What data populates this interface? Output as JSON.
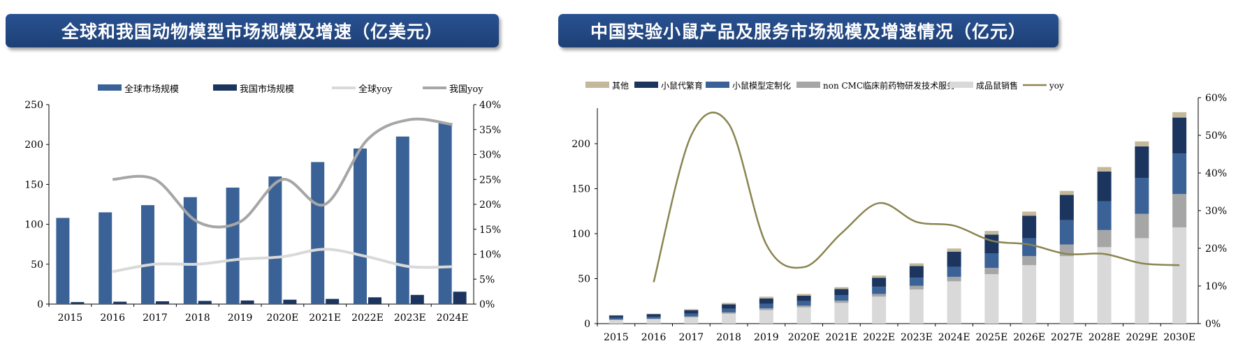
{
  "left": {
    "title": "全球和我国动物模型市场规模及增速（亿美元）",
    "chart_data": {
      "type": "bar",
      "categories": [
        "2015",
        "2016",
        "2017",
        "2018",
        "2019",
        "2020E",
        "2021E",
        "2022E",
        "2023E",
        "2024E"
      ],
      "series": [
        {
          "name": "全球市场规模",
          "kind": "bar",
          "axis": "left",
          "color": "#3a6296",
          "values": [
            108,
            115,
            124,
            134,
            146,
            160,
            178,
            195,
            210,
            227
          ]
        },
        {
          "name": "我国市场规模",
          "kind": "bar",
          "axis": "left",
          "color": "#1b355e",
          "values": [
            2.5,
            3,
            3.5,
            4,
            4.5,
            5.5,
            6.5,
            8.5,
            11.5,
            15.5
          ]
        },
        {
          "name": "全球yoy",
          "kind": "line",
          "axis": "right",
          "color": "#d9d9d9",
          "values": [
            null,
            6.5,
            8,
            8,
            9,
            9.5,
            11,
            9.5,
            7.5,
            7.5
          ]
        },
        {
          "name": "我国yoy",
          "kind": "line",
          "axis": "right",
          "color": "#a6a6a6",
          "values": [
            null,
            25,
            25,
            16.5,
            16.5,
            25,
            20,
            33,
            37,
            36
          ]
        }
      ],
      "y_left": {
        "min": 0,
        "max": 250,
        "ticks": [
          "0",
          "50",
          "100",
          "150",
          "200",
          "250"
        ]
      },
      "y_right": {
        "min": 0,
        "max": 40,
        "ticks": [
          "0%",
          "5%",
          "10%",
          "15%",
          "20%",
          "25%",
          "30%",
          "35%",
          "40%"
        ]
      },
      "legend": "top"
    }
  },
  "right": {
    "title": "中国实验小鼠产品及服务市场规模及增速情况（亿元）",
    "chart_data": {
      "type": "bar",
      "stacked": true,
      "categories": [
        "2015",
        "2016",
        "2017",
        "2018",
        "2019",
        "2020E",
        "2021E",
        "2022E",
        "2023E",
        "2024E",
        "2025E",
        "2026E",
        "2027E",
        "2028E",
        "2029E",
        "2030E"
      ],
      "series": [
        {
          "name": "成品鼠销售",
          "kind": "bar",
          "axis": "left",
          "color": "#d9d9d9",
          "values": [
            4,
            5,
            7,
            11,
            15,
            18,
            23,
            30,
            38,
            47,
            55,
            65,
            75,
            85,
            95,
            107
          ]
        },
        {
          "name": "non CMC临床前药物研发技术服务",
          "kind": "bar",
          "axis": "left",
          "color": "#a6a6a6",
          "values": [
            0.5,
            0.5,
            1,
            1.5,
            2,
            2,
            2.5,
            3,
            4,
            5,
            7,
            10,
            13,
            19,
            27,
            37
          ]
        },
        {
          "name": "小鼠模型定制化",
          "kind": "bar",
          "axis": "left",
          "color": "#3a6296",
          "values": [
            2,
            2,
            3,
            4,
            5,
            5,
            6,
            8,
            9,
            11,
            16,
            20,
            27,
            32,
            40,
            45
          ]
        },
        {
          "name": "小鼠代繁育",
          "kind": "bar",
          "axis": "left",
          "color": "#1b355e",
          "values": [
            2.5,
            3,
            4,
            5,
            6,
            6,
            7,
            10,
            13,
            17,
            21,
            25,
            28,
            33,
            35,
            40
          ]
        },
        {
          "name": "其他",
          "kind": "bar",
          "axis": "left",
          "color": "#c4b89a",
          "values": [
            0.5,
            0.5,
            1,
            1.5,
            2,
            2,
            2,
            2.5,
            3,
            3.5,
            4,
            4.5,
            4.5,
            5,
            5.5,
            6
          ]
        },
        {
          "name": "yoy",
          "kind": "line",
          "axis": "right",
          "color": "#8a8451",
          "values": [
            null,
            11,
            50,
            53,
            21,
            15,
            24,
            32,
            27,
            26,
            22,
            21,
            18.5,
            18.5,
            16,
            15.5
          ]
        }
      ],
      "legend_order": [
        "其他",
        "小鼠代繁育",
        "小鼠模型定制化",
        "non CMC临床前药物研发技术服务",
        "成品鼠销售",
        "yoy"
      ],
      "y_left": {
        "min": 0,
        "max": 250,
        "ticks": [
          "0",
          "50",
          "100",
          "150",
          "200"
        ]
      },
      "y_right": {
        "min": 0,
        "max": 60,
        "ticks": [
          "0%",
          "10%",
          "20%",
          "30%",
          "40%",
          "50%",
          "60%"
        ]
      },
      "legend": "top"
    }
  }
}
